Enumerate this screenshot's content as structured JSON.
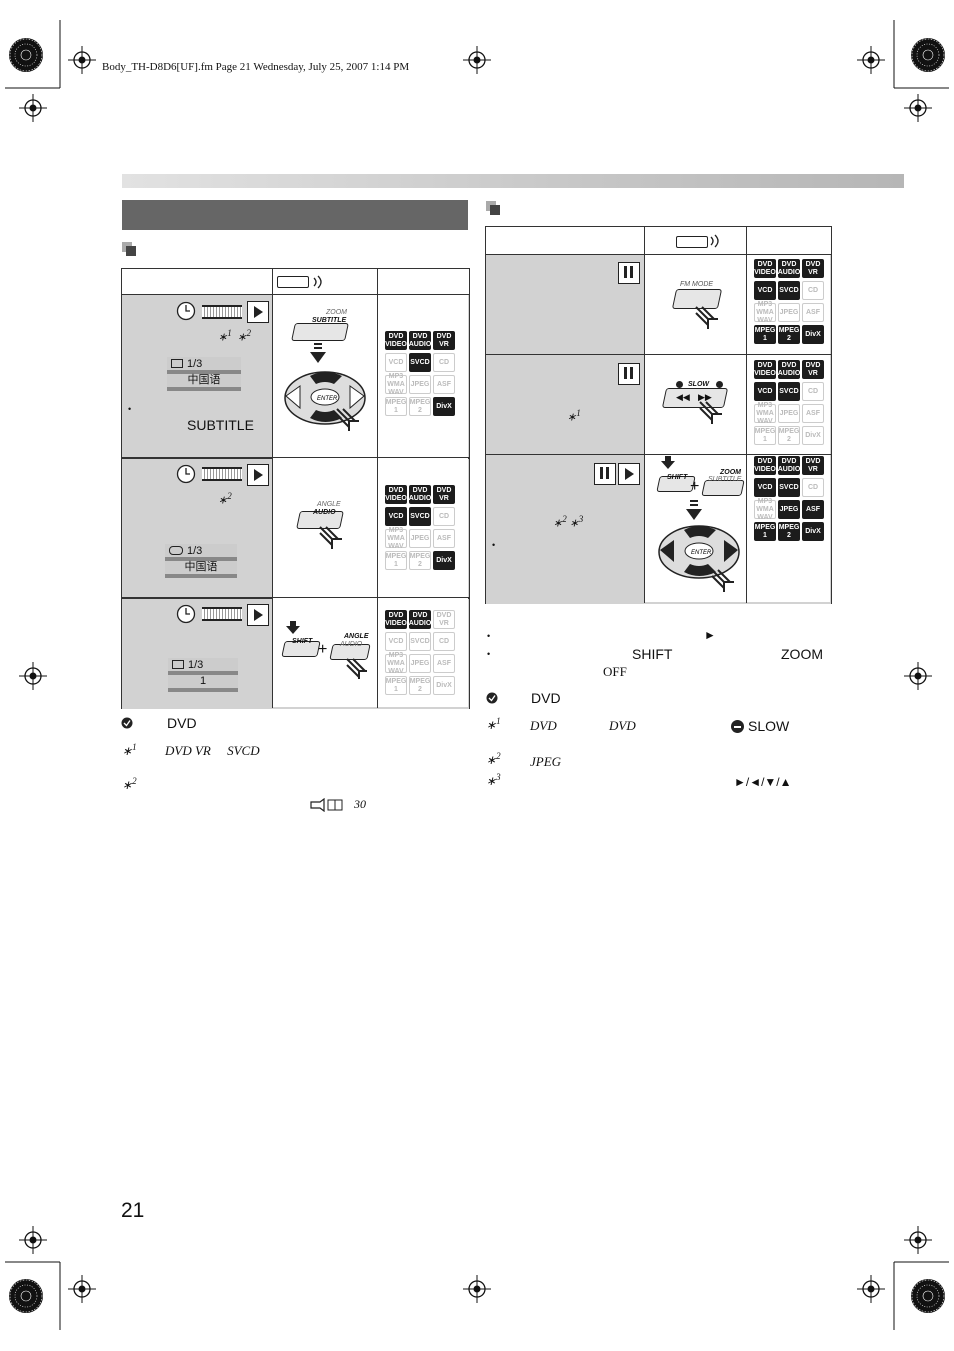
{
  "header": {
    "file_info": "Body_TH-D8D6[UF].fm  Page 21  Wednesday, July 25, 2007  1:14 PM"
  },
  "page_number": "21",
  "left": {
    "osd_1": {
      "counter": "1/3",
      "language": "中国语"
    },
    "osd_2": {
      "counter": "1/3",
      "language": "中国语"
    },
    "osd_3": {
      "counter": "1/3",
      "value": "1"
    },
    "subtitle_word": "SUBTITLE",
    "note_word": "DVD",
    "fn1_text": "DVD VR     SVCD",
    "ref_page": "30",
    "btn_zoom": "ZOOM",
    "btn_subtitle": "SUBTITLE",
    "btn_angle": "ANGLE",
    "btn_audio": "AUDIO",
    "btn_shift": "SHIFT",
    "btn_enter": "ENTER"
  },
  "right": {
    "note_shift": "SHIFT",
    "note_zoom": "ZOOM",
    "note_off": "OFF",
    "note_word": "DVD",
    "fn1_a": "DVD",
    "fn1_b": "DVD",
    "fn1_slow": "SLOW",
    "fn2_text": "JPEG",
    "fn3_arrows": "►/◄/▼/▲",
    "btn_fmmode": "FM MODE",
    "btn_slow": "SLOW",
    "btn_shift": "SHIFT",
    "btn_zoom": "ZOOM",
    "btn_subtitle": "SUBTITLE",
    "btn_enter": "ENTER"
  },
  "disc_labels": {
    "dvd_video": [
      "DVD",
      "VIDEO"
    ],
    "dvd_audio": [
      "DVD",
      "AUDIO"
    ],
    "dvd_vr": [
      "DVD",
      "VR"
    ],
    "vcd": "VCD",
    "svcd": "SVCD",
    "cd": "CD",
    "mp3": [
      "MP3",
      "WMA",
      "WAV"
    ],
    "jpeg": "JPEG",
    "asf": "ASF",
    "mpeg1": [
      "MPEG",
      "1"
    ],
    "mpeg2": [
      "MPEG",
      "2"
    ],
    "divx": "DivX"
  },
  "footnotes": {
    "m1": "1",
    "m2": "2",
    "m3": "3"
  }
}
